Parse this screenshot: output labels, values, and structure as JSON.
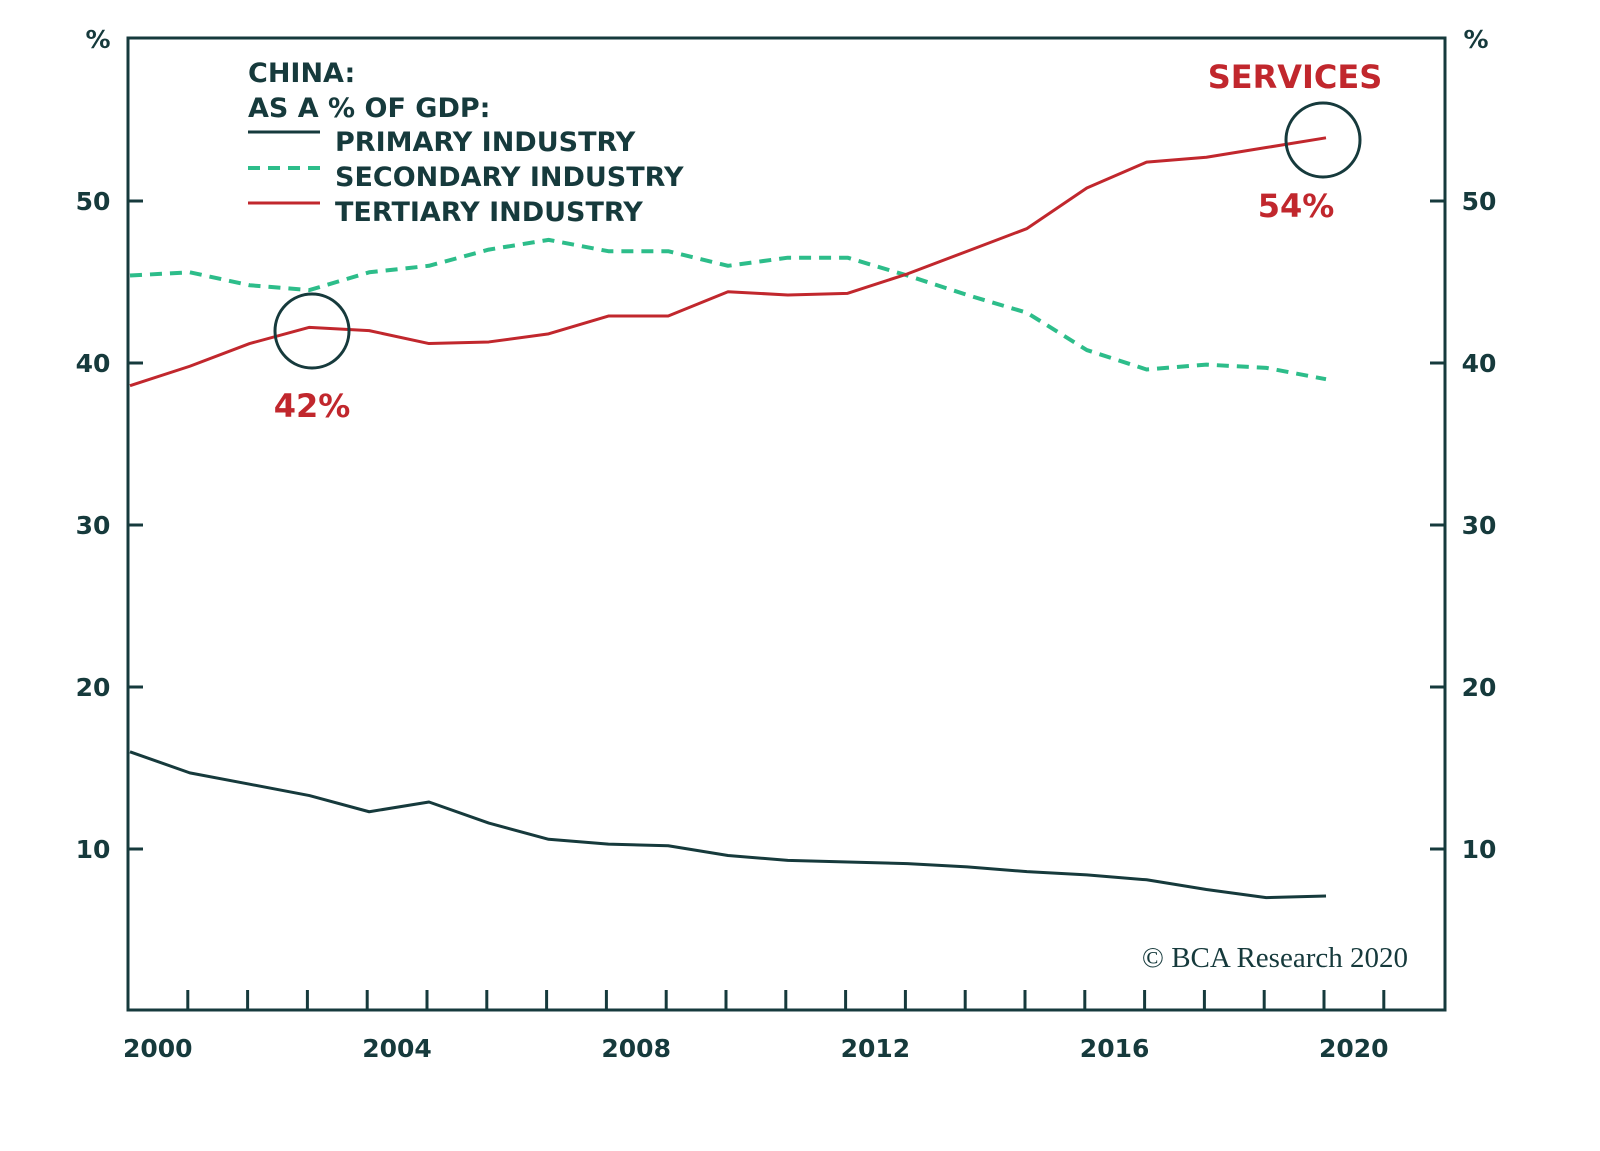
{
  "chart_data": {
    "type": "line",
    "title": "CHINA:",
    "subtitle": "AS A % OF GDP:",
    "ylabel_left": "%",
    "ylabel_right": "%",
    "ylim": [
      0,
      60
    ],
    "yticks": [
      10,
      20,
      30,
      40,
      50
    ],
    "xticks": [
      2000,
      2004,
      2008,
      2012,
      2016,
      2020
    ],
    "xlim": [
      1999,
      2021
    ],
    "grid": false,
    "legend_position": "top-left",
    "x": [
      1999,
      2000,
      2001,
      2002,
      2003,
      2004,
      2005,
      2006,
      2007,
      2008,
      2009,
      2010,
      2011,
      2012,
      2013,
      2014,
      2015,
      2016,
      2017,
      2018,
      2019
    ],
    "series": [
      {
        "name": "PRIMARY INDUSTRY",
        "color": "#163a3c",
        "style": "solid",
        "values": [
          16.0,
          14.7,
          14.0,
          13.3,
          12.3,
          12.9,
          11.6,
          10.6,
          10.3,
          10.2,
          9.6,
          9.3,
          9.2,
          9.1,
          8.9,
          8.6,
          8.4,
          8.1,
          7.5,
          7.0,
          7.1
        ]
      },
      {
        "name": "SECONDARY INDUSTRY",
        "color": "#2dbd8a",
        "style": "dashed",
        "values": [
          45.4,
          45.6,
          44.8,
          44.5,
          45.6,
          46.0,
          47.0,
          47.6,
          46.9,
          46.9,
          46.0,
          46.5,
          46.5,
          45.4,
          44.2,
          43.1,
          40.8,
          39.6,
          39.9,
          39.7,
          39.0
        ]
      },
      {
        "name": "TERTIARY INDUSTRY",
        "color": "#c1272d",
        "style": "solid",
        "values": [
          38.6,
          39.8,
          41.2,
          42.2,
          42.0,
          41.2,
          41.3,
          41.8,
          42.9,
          42.9,
          44.4,
          44.2,
          44.3,
          45.5,
          46.9,
          48.3,
          50.8,
          52.4,
          52.7,
          53.3,
          53.9
        ]
      }
    ],
    "annotations": [
      {
        "text": "42%",
        "year": 2002,
        "value": 42.2
      },
      {
        "text": "54%",
        "year": 2019,
        "value": 53.9
      },
      {
        "text": "SERVICES"
      }
    ],
    "source": "© BCA Research 2020"
  }
}
